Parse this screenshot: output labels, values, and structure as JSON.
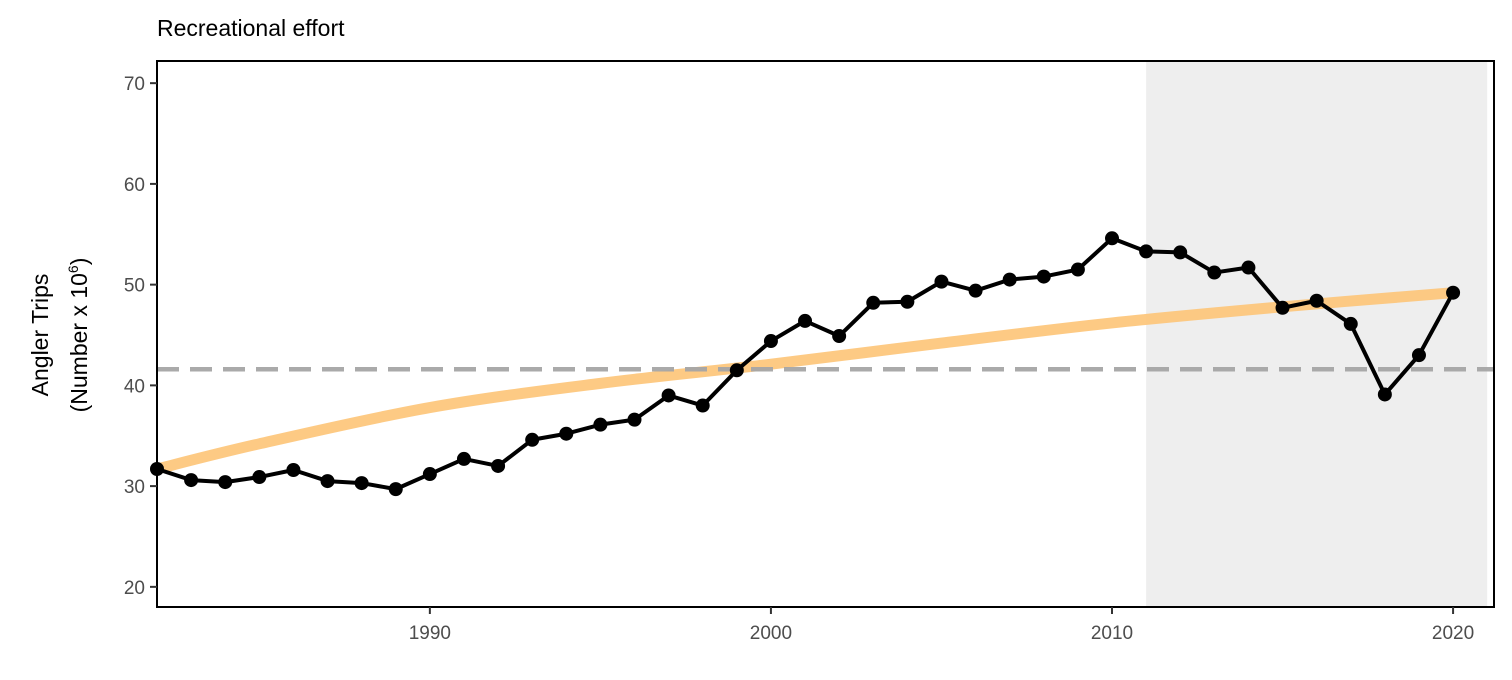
{
  "chart_data": {
    "type": "line",
    "title": "Recreational effort",
    "ylabel": "Angler Trips",
    "ylabel_sub": "(Number x 10",
    "ylabel_sup": "6",
    "ylabel_close": ")",
    "xlabel": "",
    "xlim": [
      1982,
      2021.2
    ],
    "ylim": [
      18,
      72.2
    ],
    "x_ticks": [
      1990,
      2000,
      2010,
      2020
    ],
    "y_ticks": [
      20,
      30,
      40,
      50,
      60,
      70
    ],
    "grid": false,
    "shaded_region": {
      "x_start": 2011,
      "x_end": 2021,
      "color": "#eeeeee"
    },
    "reference_line": {
      "y": 41.6,
      "style": "dashed",
      "color": "#a6a6a6"
    },
    "trend": {
      "color": "#fdc67a",
      "x": [
        1982,
        1985,
        1990,
        1995,
        2000,
        2005,
        2010,
        2015,
        2020
      ],
      "y": [
        31.7,
        34.2,
        37.8,
        40.2,
        42.1,
        44.2,
        46.2,
        47.8,
        49.2
      ]
    },
    "series": [
      {
        "color": "#000000",
        "x": [
          1982,
          1983,
          1984,
          1985,
          1986,
          1987,
          1988,
          1989,
          1990,
          1991,
          1992,
          1993,
          1994,
          1995,
          1996,
          1997,
          1998,
          1999,
          2000,
          2001,
          2002,
          2003,
          2004,
          2005,
          2006,
          2007,
          2008,
          2009,
          2010,
          2011,
          2012,
          2013,
          2014,
          2015,
          2016,
          2017,
          2018,
          2019,
          2020
        ],
        "y": [
          31.7,
          30.6,
          30.4,
          30.9,
          31.6,
          30.5,
          30.3,
          29.7,
          31.2,
          32.7,
          32.0,
          34.6,
          35.2,
          36.1,
          36.6,
          39.0,
          38.0,
          41.5,
          44.4,
          46.4,
          44.9,
          48.2,
          48.3,
          50.3,
          49.4,
          50.5,
          50.8,
          51.5,
          54.6,
          53.3,
          53.2,
          51.2,
          51.7,
          47.7,
          48.4,
          46.1,
          39.1,
          43.0,
          49.2
        ]
      }
    ]
  }
}
